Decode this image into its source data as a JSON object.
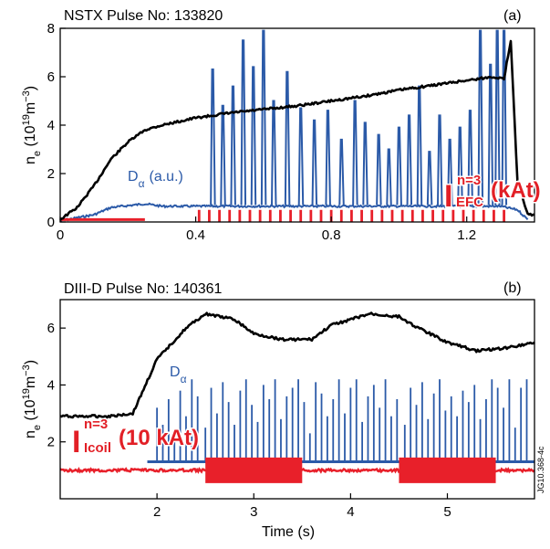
{
  "chart_data": [
    {
      "panel_letter": "(a)",
      "title": "NSTX Pulse No: 133820",
      "type": "line",
      "ylabel_main": "n",
      "ylabel_sub": "e",
      "ylabel_unit_open": " (10",
      "ylabel_unit_exp": "19",
      "ylabel_unit_mid": "m",
      "ylabel_unit_exp2": "−3",
      "ylabel_unit_close": ")",
      "xlim": [
        0,
        1.4
      ],
      "ylim": [
        0,
        8
      ],
      "xticks": [
        0,
        0.4,
        0.8,
        1.2
      ],
      "xtick_labels": [
        "0",
        "0.4",
        "0.8",
        "1.2"
      ],
      "yticks": [
        0,
        2,
        4,
        6,
        8
      ],
      "ytick_labels": [
        "0",
        "2",
        "4",
        "6",
        "8"
      ],
      "colors": {
        "density": "#000000",
        "dalpha": "#2b5aa8",
        "coil": "#e8202a"
      },
      "series": [
        {
          "key": "density",
          "x": [
            0.0,
            0.05,
            0.1,
            0.15,
            0.2,
            0.25,
            0.3,
            0.35,
            0.4,
            0.5,
            0.6,
            0.7,
            0.8,
            0.9,
            1.0,
            1.1,
            1.2,
            1.28,
            1.31,
            1.33,
            1.35,
            1.38,
            1.4
          ],
          "values": [
            0.1,
            0.6,
            1.5,
            2.6,
            3.3,
            3.8,
            4.0,
            4.15,
            4.3,
            4.5,
            4.65,
            4.8,
            5.0,
            5.2,
            5.45,
            5.65,
            5.85,
            6.0,
            5.9,
            7.5,
            1.6,
            0.3,
            0.3
          ]
        },
        {
          "key": "dalpha",
          "baseline_x": [
            0.0,
            0.1,
            0.15,
            0.25,
            0.3,
            0.4,
            1.3,
            1.35,
            1.38
          ],
          "baseline_values": [
            0.05,
            0.3,
            0.6,
            0.75,
            0.65,
            0.65,
            0.65,
            0.5,
            0.1
          ],
          "spike_times": [
            0.45,
            0.48,
            0.51,
            0.54,
            0.57,
            0.6,
            0.63,
            0.67,
            0.71,
            0.75,
            0.79,
            0.83,
            0.87,
            0.9,
            0.94,
            0.97,
            1.0,
            1.03,
            1.06,
            1.09,
            1.12,
            1.15,
            1.18,
            1.21,
            1.24,
            1.27,
            1.29,
            1.31
          ],
          "spike_heights": [
            6.3,
            4.8,
            5.6,
            7.5,
            6.4,
            7.9,
            5.0,
            6.2,
            4.7,
            4.2,
            4.6,
            3.4,
            5.0,
            4.1,
            3.6,
            3.0,
            3.9,
            4.4,
            5.6,
            2.9,
            4.4,
            3.4,
            3.9,
            4.6,
            7.9,
            6.5,
            7.9,
            7.9
          ]
        },
        {
          "key": "coil",
          "baseline_until": 0.25,
          "baseline_value": 0.1,
          "pulse_times": [
            0.41,
            0.44,
            0.47,
            0.5,
            0.53,
            0.56,
            0.59,
            0.62,
            0.65,
            0.68,
            0.71,
            0.74,
            0.77,
            0.8,
            0.83,
            0.86,
            0.89,
            0.92,
            0.95,
            0.98,
            1.01,
            1.04,
            1.07,
            1.1,
            1.13,
            1.16,
            1.19,
            1.22,
            1.25,
            1.28,
            1.31
          ],
          "pulse_height": 0.5
        }
      ],
      "annotations": {
        "dalpha_main": "D",
        "dalpha_sub": "α",
        "dalpha_suffix": "(a.u.)",
        "coil_main": "I",
        "coil_sup": "n=3",
        "coil_sub": "EFC",
        "coil_suffix": "(kAt)"
      }
    },
    {
      "panel_letter": "(b)",
      "title": "DIII-D Pulse No: 140361",
      "type": "line",
      "ylabel_main": "n",
      "ylabel_sub": "e",
      "ylabel_unit_open": " (10",
      "ylabel_unit_exp": "19",
      "ylabel_unit_mid": "m",
      "ylabel_unit_exp2": "−3",
      "ylabel_unit_close": ")",
      "xlabel": "Time (s)",
      "xlim": [
        1.0,
        5.9
      ],
      "ylim": [
        0,
        7
      ],
      "xticks": [
        2,
        3,
        4,
        5
      ],
      "xtick_labels": [
        "2",
        "3",
        "4",
        "5"
      ],
      "yticks": [
        2,
        4,
        6
      ],
      "ytick_labels": [
        "2",
        "4",
        "6"
      ],
      "colors": {
        "density": "#000000",
        "dalpha": "#2b5aa8",
        "coil": "#e8202a"
      },
      "series": [
        {
          "key": "density",
          "x": [
            1.0,
            1.5,
            1.75,
            2.0,
            2.3,
            2.5,
            2.8,
            3.0,
            3.3,
            3.6,
            3.8,
            4.0,
            4.2,
            4.5,
            4.7,
            5.0,
            5.3,
            5.6,
            5.9
          ],
          "values": [
            2.9,
            2.9,
            3.0,
            4.9,
            6.0,
            6.5,
            6.3,
            5.8,
            5.6,
            5.6,
            6.1,
            6.3,
            6.5,
            6.4,
            6.0,
            5.5,
            5.2,
            5.3,
            5.5
          ]
        },
        {
          "key": "dalpha",
          "baseline_from": 1.9,
          "baseline_value": 1.3,
          "spike_times": [
            2.0,
            2.06,
            2.12,
            2.18,
            2.24,
            2.3,
            2.36,
            2.42,
            2.5,
            2.56,
            2.62,
            2.68,
            2.74,
            2.8,
            2.86,
            2.92,
            2.98,
            3.04,
            3.1,
            3.16,
            3.22,
            3.28,
            3.34,
            3.4,
            3.46,
            3.52,
            3.58,
            3.64,
            3.7,
            3.76,
            3.82,
            3.88,
            3.94,
            4.0,
            4.06,
            4.12,
            4.18,
            4.24,
            4.3,
            4.36,
            4.42,
            4.48,
            4.56,
            4.62,
            4.68,
            4.74,
            4.8,
            4.86,
            4.92,
            4.98,
            5.04,
            5.1,
            5.16,
            5.22,
            5.28,
            5.34,
            5.4,
            5.46,
            5.52,
            5.58,
            5.64,
            5.7,
            5.76,
            5.82
          ],
          "spike_heights": [
            3.2,
            2.6,
            3.5,
            2.4,
            3.8,
            2.9,
            4.2,
            3.6,
            2.5,
            3.9,
            3.0,
            4.1,
            3.4,
            2.6,
            3.8,
            4.2,
            3.3,
            2.7,
            4.0,
            3.5,
            4.2,
            2.8,
            3.6,
            3.9,
            4.2,
            3.4,
            2.3,
            4.1,
            3.7,
            2.9,
            3.5,
            4.2,
            3.0,
            3.9,
            4.2,
            2.7,
            3.6,
            4.0,
            3.2,
            4.2,
            2.9,
            3.5,
            2.6,
            3.9,
            3.3,
            4.1,
            2.8,
            3.7,
            4.2,
            3.1,
            3.6,
            2.9,
            3.8,
            3.4,
            4.0,
            2.8,
            3.5,
            4.2,
            3.9,
            3.2,
            4.2,
            2.5,
            3.9,
            4.2
          ]
        },
        {
          "key": "coil",
          "baseline_value": 1.0,
          "blocks": [
            {
              "start": 2.5,
              "end": 3.5,
              "high": 1.45,
              "low": 0.55
            },
            {
              "start": 4.5,
              "end": 5.5,
              "high": 1.45,
              "low": 0.55
            }
          ]
        }
      ],
      "annotations": {
        "dalpha_main": "D",
        "dalpha_sub": "α",
        "coil_main": "I",
        "coil_sup": "n=3",
        "coil_sub": "Icoil",
        "coil_suffix": "(10 kAt)"
      }
    }
  ],
  "figure_id": "JG10.368-4c"
}
